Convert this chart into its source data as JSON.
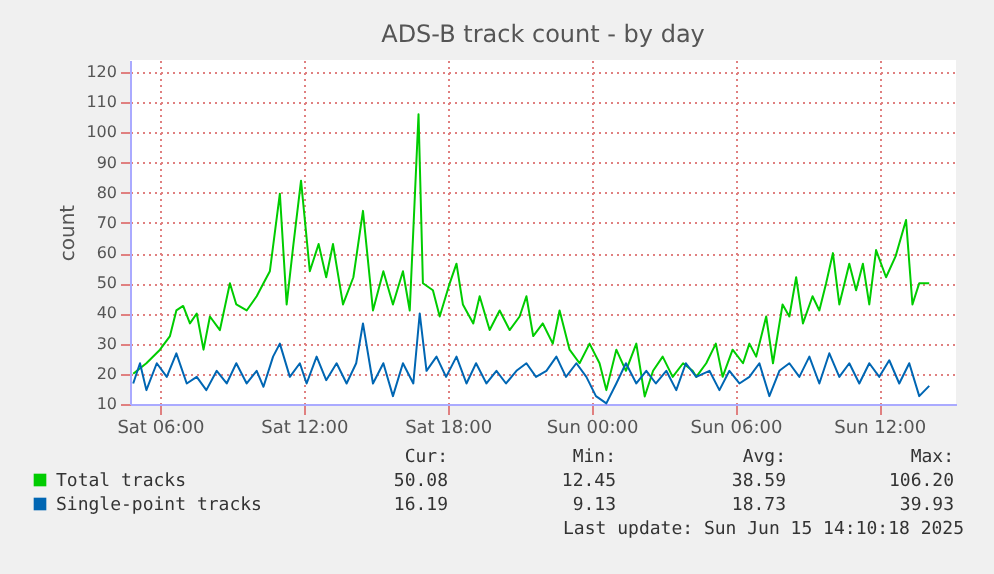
{
  "chart_data": {
    "type": "line",
    "title": "ADS-B track count - by day",
    "ylabel": "count",
    "xlim": [
      "2025-06-14T04:45",
      "2025-06-15T15:12"
    ],
    "ylim": [
      10,
      124
    ],
    "xticks": [
      {
        "value": "2025-06-14T06:00",
        "label": "Sat 06:00"
      },
      {
        "value": "2025-06-14T12:00",
        "label": "Sat 12:00"
      },
      {
        "value": "2025-06-14T18:00",
        "label": "Sat 18:00"
      },
      {
        "value": "2025-06-15T00:00",
        "label": "Sun 00:00"
      },
      {
        "value": "2025-06-15T06:00",
        "label": "Sun 06:00"
      },
      {
        "value": "2025-06-15T12:00",
        "label": "Sun 12:00"
      }
    ],
    "yticks": [
      10,
      20,
      30,
      40,
      50,
      60,
      70,
      80,
      90,
      100,
      110,
      120
    ],
    "grid": true,
    "legend": "bottom",
    "marker": "none",
    "line_style": "solid",
    "annotations": [
      "Cur:",
      "Min:",
      "Avg:",
      "Max:",
      "50.08",
      "12.45",
      "38.59",
      "106.20",
      "16.19",
      "9.13",
      "18.73",
      "39.93",
      "Last update: Sun Jun 15 14:10:18 2025"
    ],
    "series": [
      {
        "name": "Total tracks",
        "color": "#00cc00",
        "x": [
          "2025-06-14T04:53",
          "2025-06-14T05:26",
          "2025-06-14T06:00",
          "2025-06-14T06:25",
          "2025-06-14T06:41",
          "2025-06-14T06:58",
          "2025-06-14T07:15",
          "2025-06-14T07:32",
          "2025-06-14T07:49",
          "2025-06-14T08:05",
          "2025-06-14T08:30",
          "2025-06-14T08:55",
          "2025-06-14T09:11",
          "2025-06-14T09:37",
          "2025-06-14T10:02",
          "2025-06-14T10:19",
          "2025-06-14T10:35",
          "2025-06-14T11:00",
          "2025-06-14T11:17",
          "2025-06-14T11:34",
          "2025-06-14T11:53",
          "2025-06-14T12:15",
          "2025-06-14T12:37",
          "2025-06-14T12:56",
          "2025-06-14T13:13",
          "2025-06-14T13:38",
          "2025-06-14T14:04",
          "2025-06-14T14:28",
          "2025-06-14T14:53",
          "2025-06-14T15:19",
          "2025-06-14T15:43",
          "2025-06-14T16:08",
          "2025-06-14T16:25",
          "2025-06-14T16:47",
          "2025-06-14T16:58",
          "2025-06-14T17:23",
          "2025-06-14T17:40",
          "2025-06-14T18:05",
          "2025-06-14T18:22",
          "2025-06-14T18:38",
          "2025-06-14T19:04",
          "2025-06-14T19:20",
          "2025-06-14T19:45",
          "2025-06-14T20:10",
          "2025-06-14T20:35",
          "2025-06-14T21:00",
          "2025-06-14T21:17",
          "2025-06-14T21:34",
          "2025-06-14T21:58",
          "2025-06-14T22:23",
          "2025-06-14T22:40",
          "2025-06-14T23:05",
          "2025-06-14T23:30",
          "2025-06-14T23:55",
          "2025-06-15T00:20",
          "2025-06-15T00:37",
          "2025-06-15T01:02",
          "2025-06-15T01:26",
          "2025-06-15T01:52",
          "2025-06-15T02:13",
          "2025-06-15T02:34",
          "2025-06-15T02:58",
          "2025-06-15T03:23",
          "2025-06-15T03:49",
          "2025-06-15T04:13",
          "2025-06-15T04:22",
          "2025-06-15T04:47",
          "2025-06-15T05:11",
          "2025-06-15T05:28",
          "2025-06-15T05:53",
          "2025-06-15T06:19",
          "2025-06-15T06:35",
          "2025-06-15T06:52",
          "2025-06-15T07:17",
          "2025-06-15T07:34",
          "2025-06-15T07:58",
          "2025-06-15T08:15",
          "2025-06-15T08:32",
          "2025-06-15T08:49",
          "2025-06-15T09:13",
          "2025-06-15T09:30",
          "2025-06-15T09:47",
          "2025-06-15T10:04",
          "2025-06-15T10:20",
          "2025-06-15T10:45",
          "2025-06-15T11:02",
          "2025-06-15T11:19",
          "2025-06-15T11:35",
          "2025-06-15T11:52",
          "2025-06-15T12:17",
          "2025-06-15T12:41",
          "2025-06-15T13:07",
          "2025-06-15T13:23",
          "2025-06-15T13:40",
          "2025-06-15T14:05"
        ],
        "values": [
          20,
          23.5,
          28,
          32.5,
          41,
          42.5,
          36.7,
          40,
          28,
          39,
          34.5,
          50,
          43,
          41,
          45.7,
          50,
          54,
          79.7,
          43,
          63,
          84,
          54,
          63,
          52,
          63,
          43,
          52,
          74,
          41,
          54,
          43,
          54,
          41,
          106,
          50,
          47.7,
          39,
          50,
          56.5,
          43,
          36.7,
          45.7,
          34.5,
          41,
          34.5,
          39,
          45.7,
          32.5,
          36.7,
          30,
          41,
          28,
          23.5,
          30,
          23.5,
          14.6,
          28,
          21,
          30,
          12.5,
          21,
          25.7,
          19,
          23.5,
          21,
          19,
          23.5,
          30,
          19,
          28,
          23.5,
          30,
          25.7,
          39,
          23.5,
          43,
          39,
          52,
          36.7,
          45.7,
          41,
          50,
          60,
          43,
          56.5,
          47.7,
          56.5,
          43,
          61,
          52,
          59,
          71,
          43,
          50,
          50
        ]
      },
      {
        "name": "Single-point tracks",
        "color": "#0066b3",
        "x": [
          "2025-06-14T04:53",
          "2025-06-14T05:10",
          "2025-06-14T05:26",
          "2025-06-14T05:52",
          "2025-06-14T06:17",
          "2025-06-14T06:41",
          "2025-06-14T07:07",
          "2025-06-14T07:32",
          "2025-06-14T07:56",
          "2025-06-14T08:22",
          "2025-06-14T08:47",
          "2025-06-14T09:11",
          "2025-06-14T09:37",
          "2025-06-14T10:02",
          "2025-06-14T10:19",
          "2025-06-14T10:43",
          "2025-06-14T11:00",
          "2025-06-14T11:25",
          "2025-06-14T11:50",
          "2025-06-14T12:07",
          "2025-06-14T12:32",
          "2025-06-14T12:56",
          "2025-06-14T13:22",
          "2025-06-14T13:47",
          "2025-06-14T14:11",
          "2025-06-14T14:28",
          "2025-06-14T14:53",
          "2025-06-14T15:19",
          "2025-06-14T15:43",
          "2025-06-14T16:08",
          "2025-06-14T16:34",
          "2025-06-14T16:50",
          "2025-06-14T17:07",
          "2025-06-14T17:32",
          "2025-06-14T17:56",
          "2025-06-14T18:22",
          "2025-06-14T18:47",
          "2025-06-14T19:11",
          "2025-06-14T19:37",
          "2025-06-14T20:02",
          "2025-06-14T20:26",
          "2025-06-14T20:52",
          "2025-06-14T21:17",
          "2025-06-14T21:41",
          "2025-06-14T22:07",
          "2025-06-14T22:32",
          "2025-06-14T22:56",
          "2025-06-14T23:22",
          "2025-06-14T23:47",
          "2025-06-15T00:11",
          "2025-06-15T00:37",
          "2025-06-15T01:02",
          "2025-06-15T01:26",
          "2025-06-15T01:52",
          "2025-06-15T02:17",
          "2025-06-15T02:41",
          "2025-06-15T03:07",
          "2025-06-15T03:32",
          "2025-06-15T03:56",
          "2025-06-15T04:22",
          "2025-06-15T04:55",
          "2025-06-15T05:20",
          "2025-06-15T05:45",
          "2025-06-15T06:10",
          "2025-06-15T06:35",
          "2025-06-15T07:00",
          "2025-06-15T07:25",
          "2025-06-15T07:50",
          "2025-06-15T08:15",
          "2025-06-15T08:40",
          "2025-06-15T09:05",
          "2025-06-15T09:30",
          "2025-06-15T09:55",
          "2025-06-15T10:20",
          "2025-06-15T10:45",
          "2025-06-15T11:10",
          "2025-06-15T11:35",
          "2025-06-15T12:00",
          "2025-06-15T12:25",
          "2025-06-15T12:50",
          "2025-06-15T13:15",
          "2025-06-15T13:40",
          "2025-06-15T14:05"
        ],
        "values": [
          16.8,
          23.5,
          14.6,
          23.5,
          19,
          26.8,
          16.8,
          19,
          14.6,
          21,
          16.8,
          23.5,
          16.8,
          21,
          15.7,
          25.7,
          30,
          19,
          23.5,
          16.8,
          25.7,
          17.9,
          23.5,
          16.8,
          23.5,
          36.7,
          16.8,
          23.5,
          12.6,
          23.5,
          16.8,
          40,
          21,
          25.7,
          19,
          25.7,
          16.8,
          23.5,
          16.8,
          21,
          16.8,
          21,
          23.5,
          19,
          21,
          25.7,
          19,
          23.5,
          19,
          12.6,
          10.2,
          16.8,
          23.5,
          16.8,
          21,
          16.8,
          21,
          14.6,
          23.5,
          19,
          21,
          14.6,
          21,
          16.8,
          19,
          23.5,
          12.6,
          21,
          23.5,
          19,
          25.7,
          16.8,
          26.8,
          19,
          23.5,
          16.8,
          23.5,
          19,
          24.5,
          16.8,
          23.5,
          12.6,
          16
        ]
      }
    ]
  }
}
